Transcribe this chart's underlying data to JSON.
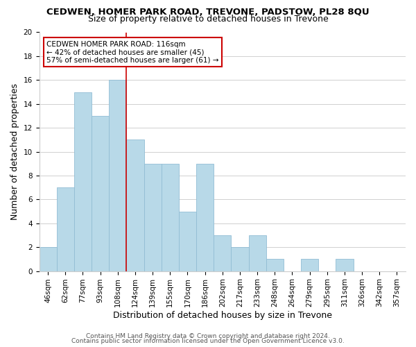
{
  "title": "CEDWEN, HOMER PARK ROAD, TREVONE, PADSTOW, PL28 8QU",
  "subtitle": "Size of property relative to detached houses in Trevone",
  "xlabel": "Distribution of detached houses by size in Trevone",
  "ylabel": "Number of detached properties",
  "bin_labels": [
    "46sqm",
    "62sqm",
    "77sqm",
    "93sqm",
    "108sqm",
    "124sqm",
    "139sqm",
    "155sqm",
    "170sqm",
    "186sqm",
    "202sqm",
    "217sqm",
    "233sqm",
    "248sqm",
    "264sqm",
    "279sqm",
    "295sqm",
    "311sqm",
    "326sqm",
    "342sqm",
    "357sqm"
  ],
  "bar_heights": [
    2,
    7,
    15,
    13,
    16,
    11,
    9,
    9,
    5,
    9,
    3,
    2,
    3,
    1,
    0,
    1,
    0,
    1,
    0,
    0,
    0
  ],
  "bar_color": "#b8d9e8",
  "bar_edge_color": "#91bdd4",
  "vline_index": 4,
  "vline_color": "#cc0000",
  "annotation_title": "CEDWEN HOMER PARK ROAD: 116sqm",
  "annotation_line1": "← 42% of detached houses are smaller (45)",
  "annotation_line2": "57% of semi-detached houses are larger (61) →",
  "annotation_box_color": "#ffffff",
  "annotation_box_edge": "#cc0000",
  "ylim": [
    0,
    20
  ],
  "yticks": [
    0,
    2,
    4,
    6,
    8,
    10,
    12,
    14,
    16,
    18,
    20
  ],
  "footer1": "Contains HM Land Registry data © Crown copyright and database right 2024.",
  "footer2": "Contains public sector information licensed under the Open Government Licence v3.0.",
  "grid_color": "#d0d0d0",
  "bg_color": "#ffffff",
  "title_fontsize": 9.5,
  "subtitle_fontsize": 9,
  "axis_label_fontsize": 9,
  "tick_fontsize": 7.5,
  "annot_fontsize": 7.5,
  "footer_fontsize": 6.5
}
